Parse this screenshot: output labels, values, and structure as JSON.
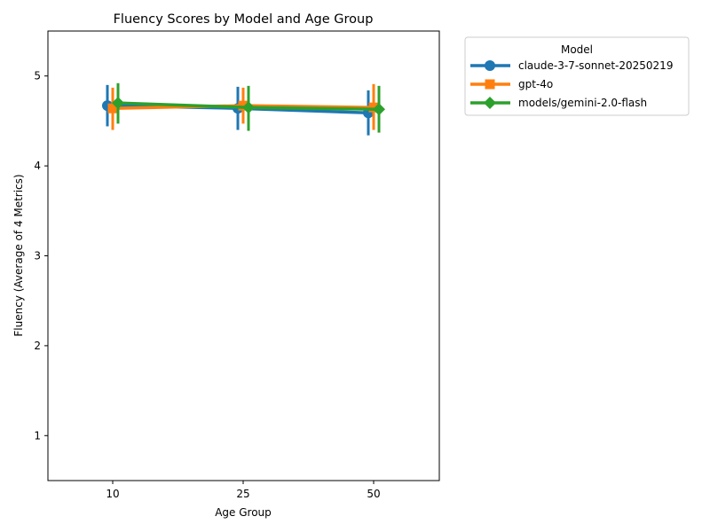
{
  "chart_data": {
    "type": "line",
    "title": "Fluency Scores by Model and Age Group",
    "xlabel": "Age Group",
    "ylabel": "Fluency (Average of 4 Metrics)",
    "categories": [
      "10",
      "25",
      "50"
    ],
    "ylim": [
      0.5,
      5.5
    ],
    "yticks": [
      1,
      2,
      3,
      4,
      5
    ],
    "grid": false,
    "legend": {
      "title": "Model",
      "placement": "outside-top-right"
    },
    "series": [
      {
        "name": "claude-3-7-sonnet-20250219",
        "color": "#1f77b4",
        "marker": "circle",
        "values": [
          4.67,
          4.64,
          4.59
        ],
        "error_low": [
          4.44,
          4.4,
          4.34
        ],
        "error_high": [
          4.9,
          4.88,
          4.84
        ]
      },
      {
        "name": "gpt-4o",
        "color": "#ff7f0e",
        "marker": "square",
        "values": [
          4.64,
          4.67,
          4.65
        ],
        "error_low": [
          4.4,
          4.47,
          4.4
        ],
        "error_high": [
          4.87,
          4.87,
          4.91
        ]
      },
      {
        "name": "models/gemini-2.0-flash",
        "color": "#2ca02c",
        "marker": "diamond",
        "values": [
          4.7,
          4.65,
          4.63
        ],
        "error_low": [
          4.47,
          4.39,
          4.37
        ],
        "error_high": [
          4.92,
          4.89,
          4.89
        ]
      }
    ]
  }
}
